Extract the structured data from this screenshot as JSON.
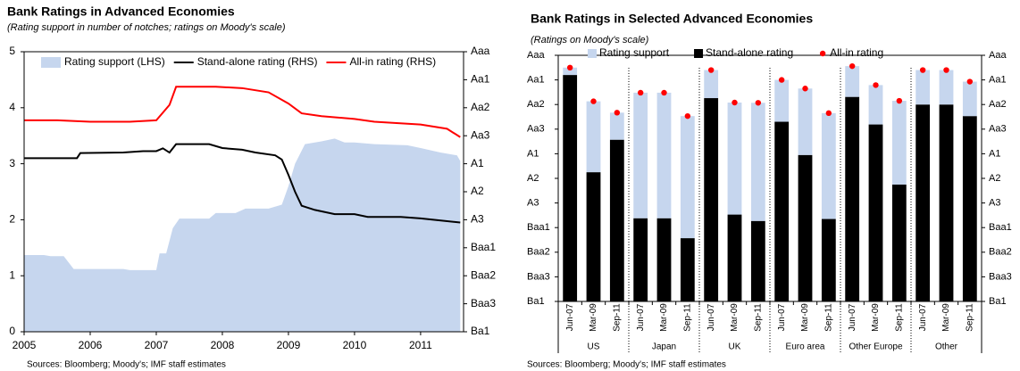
{
  "chart_data": [
    {
      "type": "area-line",
      "title": "Bank Ratings in Advanced Economies",
      "subtitle": "(Rating support in number of notches; ratings on Moody's scale)",
      "source": "Sources: Bloomberg; Moody's; IMF staff estimates",
      "xlim": [
        2005,
        2011.65
      ],
      "xticks": [
        2005,
        2006,
        2007,
        2008,
        2009,
        2010,
        2011
      ],
      "ylim": [
        0,
        5
      ],
      "yticks": [
        0,
        1,
        2,
        3,
        4,
        5
      ],
      "y2lim": [
        0,
        10
      ],
      "y2ticks": [
        {
          "value": 10,
          "label": "Aaa"
        },
        {
          "value": 9,
          "label": "Aa1"
        },
        {
          "value": 8,
          "label": "Aa2"
        },
        {
          "value": 7,
          "label": "Aa3"
        },
        {
          "value": 6,
          "label": "A1"
        },
        {
          "value": 5,
          "label": "A2"
        },
        {
          "value": 4,
          "label": "A3"
        },
        {
          "value": 3,
          "label": "Baa1"
        },
        {
          "value": 2,
          "label": "Baa2"
        },
        {
          "value": 1,
          "label": "Baa3"
        },
        {
          "value": 0,
          "label": "Ba1"
        }
      ],
      "series": [
        {
          "name": "Rating support (LHS)",
          "type": "area",
          "color": "#c6d6ee",
          "x": [
            2005.0,
            2005.3,
            2005.4,
            2005.6,
            2005.75,
            2006.5,
            2006.6,
            2007.0,
            2007.05,
            2007.15,
            2007.25,
            2007.35,
            2007.8,
            2007.9,
            2008.2,
            2008.35,
            2008.7,
            2008.9,
            2009.0,
            2009.1,
            2009.25,
            2009.5,
            2009.7,
            2009.85,
            2010.0,
            2010.3,
            2010.8,
            2011.0,
            2011.3,
            2011.55,
            2011.6
          ],
          "values": [
            1.37,
            1.37,
            1.35,
            1.35,
            1.12,
            1.12,
            1.1,
            1.1,
            1.4,
            1.4,
            1.85,
            2.02,
            2.02,
            2.12,
            2.12,
            2.2,
            2.2,
            2.27,
            2.6,
            3.0,
            3.35,
            3.4,
            3.45,
            3.38,
            3.38,
            3.35,
            3.33,
            3.28,
            3.2,
            3.15,
            3.05
          ]
        },
        {
          "name": "Stand-alone rating (RHS)",
          "type": "line",
          "axis": "y2",
          "color": "#000000",
          "x": [
            2005.0,
            2005.8,
            2005.85,
            2006.5,
            2006.8,
            2007.0,
            2007.1,
            2007.2,
            2007.3,
            2007.8,
            2008.0,
            2008.3,
            2008.5,
            2008.8,
            2008.9,
            2009.0,
            2009.1,
            2009.2,
            2009.4,
            2009.7,
            2010.0,
            2010.2,
            2010.7,
            2011.0,
            2011.6
          ],
          "values": [
            6.2,
            6.2,
            6.38,
            6.4,
            6.45,
            6.45,
            6.55,
            6.4,
            6.7,
            6.7,
            6.56,
            6.5,
            6.4,
            6.3,
            6.15,
            5.6,
            5.0,
            4.5,
            4.35,
            4.2,
            4.2,
            4.1,
            4.1,
            4.05,
            3.9
          ]
        },
        {
          "name": "All-in rating (RHS)",
          "type": "line",
          "axis": "y2",
          "color": "#ff0000",
          "x": [
            2005.0,
            2005.5,
            2006.0,
            2006.6,
            2007.0,
            2007.2,
            2007.3,
            2007.9,
            2008.3,
            2008.7,
            2009.0,
            2009.2,
            2009.5,
            2010.0,
            2010.3,
            2011.0,
            2011.4,
            2011.6
          ],
          "values": [
            7.55,
            7.55,
            7.5,
            7.5,
            7.55,
            8.1,
            8.75,
            8.75,
            8.7,
            8.55,
            8.15,
            7.8,
            7.7,
            7.6,
            7.5,
            7.4,
            7.25,
            6.95
          ]
        }
      ]
    },
    {
      "type": "stacked-bar-dot",
      "title": "Bank Ratings in Selected Advanced Economies",
      "subtitle": "(Ratings on Moody's scale)",
      "source": "Sources: Bloomberg; Moody's; IMF staff estimates",
      "categories": [
        "Jun-07",
        "Mar-09",
        "Sep-11",
        "Jun-07",
        "Mar-09",
        "Sep-11",
        "Jun-07",
        "Mar-09",
        "Sep-11",
        "Jun-07",
        "Mar-09",
        "Sep-11",
        "Jun-07",
        "Mar-09",
        "Sep-11",
        "Jun-07",
        "Mar-09",
        "Sep-11"
      ],
      "groups": [
        "US",
        "Japan",
        "UK",
        "Euro area",
        "Other Europe",
        "Other"
      ],
      "ylim": [
        0,
        10
      ],
      "yticks": [
        {
          "value": 10,
          "label": "Aaa"
        },
        {
          "value": 9,
          "label": "Aa1"
        },
        {
          "value": 8,
          "label": "Aa2"
        },
        {
          "value": 7,
          "label": "Aa3"
        },
        {
          "value": 6,
          "label": "A1"
        },
        {
          "value": 5,
          "label": "A2"
        },
        {
          "value": 4,
          "label": "A3"
        },
        {
          "value": 3,
          "label": "Baa1"
        },
        {
          "value": 2,
          "label": "Baa2"
        },
        {
          "value": 1,
          "label": "Baa3"
        },
        {
          "value": 0,
          "label": "Ba1"
        }
      ],
      "series": [
        {
          "name": "Rating support",
          "type": "bar",
          "color": "#c6d6ee",
          "values": [
            0.3,
            2.88,
            1.1,
            5.1,
            5.1,
            4.96,
            1.14,
            4.55,
            4.8,
            1.7,
            2.7,
            4.3,
            1.25,
            1.6,
            3.4,
            1.4,
            1.4,
            1.4
          ]
        },
        {
          "name": "Stand-alone rating",
          "type": "bar",
          "color": "#000000",
          "values": [
            9.2,
            5.25,
            6.57,
            3.38,
            3.38,
            2.57,
            8.26,
            3.53,
            3.27,
            7.3,
            5.95,
            3.35,
            8.31,
            7.19,
            4.75,
            8.0,
            8.0,
            7.53
          ]
        },
        {
          "name": "All-in rating",
          "type": "dot",
          "color": "#ff0000",
          "values": [
            9.5,
            8.13,
            7.67,
            8.48,
            8.48,
            7.53,
            9.4,
            8.08,
            8.07,
            9.0,
            8.65,
            7.65,
            9.56,
            8.79,
            8.15,
            9.4,
            9.4,
            8.93
          ]
        }
      ]
    }
  ]
}
